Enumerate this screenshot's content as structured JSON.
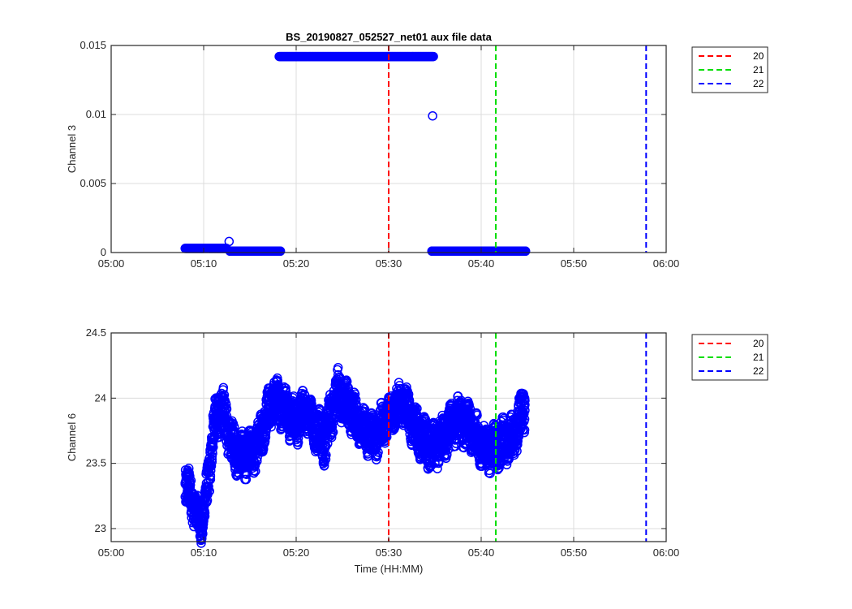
{
  "chart_data": [
    {
      "type": "scatter",
      "title": "BS_20190827_052527_net01 aux file data",
      "xlabel": "",
      "ylabel": "Channel 3",
      "xlim": [
        "05:00",
        "06:00"
      ],
      "ylim": [
        0,
        0.015
      ],
      "xticks": [
        "05:00",
        "05:10",
        "05:20",
        "05:30",
        "05:40",
        "05:50",
        "06:00"
      ],
      "yticks": [
        0,
        0.005,
        0.01,
        0.015
      ],
      "ytick_labels": [
        "0",
        "0.005",
        "0.01",
        "0.015"
      ],
      "grid": true,
      "marker": "circle",
      "marker_color": "#0000ff",
      "segments": [
        {
          "x_start": "05:08:00",
          "x_end": "05:12:30",
          "y": 0.0003
        },
        {
          "x_start": "05:12:50",
          "x_end": "05:18:20",
          "y": 0.0001
        },
        {
          "x_start": "05:18:10",
          "x_end": "05:34:50",
          "y": 0.0142
        },
        {
          "x_start": "05:34:40",
          "x_end": "05:44:50",
          "y": 0.0001
        }
      ],
      "points": [
        {
          "x": "05:12:45",
          "y": 0.0008
        },
        {
          "x": "05:34:45",
          "y": 0.0099
        }
      ],
      "vlines": [
        {
          "name": "20",
          "x": "05:30:00",
          "color": "#ff0000"
        },
        {
          "name": "21",
          "x": "05:41:35",
          "color": "#00dd00"
        },
        {
          "name": "22",
          "x": "05:57:50",
          "color": "#0000ff"
        }
      ],
      "legend_position": "outside-top-right",
      "legend": [
        "20",
        "21",
        "22"
      ]
    },
    {
      "type": "scatter",
      "title": "",
      "xlabel": "Time (HH:MM)",
      "ylabel": "Channel 6",
      "xlim": [
        "05:00",
        "06:00"
      ],
      "ylim": [
        22.9,
        24.5
      ],
      "xticks": [
        "05:00",
        "05:10",
        "05:20",
        "05:30",
        "05:40",
        "05:50",
        "06:00"
      ],
      "yticks": [
        23,
        23.5,
        24,
        24.5
      ],
      "ytick_labels": [
        "23",
        "23.5",
        "24",
        "24.5"
      ],
      "grid": true,
      "marker": "circle",
      "marker_color": "#0000ff",
      "x_range": [
        "05:08:00",
        "05:44:45"
      ],
      "trend": [
        {
          "x": "05:08:00",
          "y_low": 23.2,
          "y_high": 23.5
        },
        {
          "x": "05:09:00",
          "y_low": 23.05,
          "y_high": 23.3
        },
        {
          "x": "05:09:40",
          "y_low": 22.9,
          "y_high": 23.1
        },
        {
          "x": "05:10:30",
          "y_low": 23.2,
          "y_high": 23.5
        },
        {
          "x": "05:11:00",
          "y_low": 23.6,
          "y_high": 23.9
        },
        {
          "x": "05:12:00",
          "y_low": 23.8,
          "y_high": 24.1
        },
        {
          "x": "05:13:00",
          "y_low": 23.5,
          "y_high": 23.8
        },
        {
          "x": "05:14:00",
          "y_low": 23.4,
          "y_high": 23.7
        },
        {
          "x": "05:15:30",
          "y_low": 23.45,
          "y_high": 23.75
        },
        {
          "x": "05:17:30",
          "y_low": 23.85,
          "y_high": 24.15
        },
        {
          "x": "05:19:00",
          "y_low": 23.75,
          "y_high": 24.05
        },
        {
          "x": "05:20:00",
          "y_low": 23.65,
          "y_high": 23.95
        },
        {
          "x": "05:21:00",
          "y_low": 23.8,
          "y_high": 24.05
        },
        {
          "x": "05:22:00",
          "y_low": 23.65,
          "y_high": 23.9
        },
        {
          "x": "05:23:00",
          "y_low": 23.5,
          "y_high": 23.85
        },
        {
          "x": "05:24:30",
          "y_low": 23.9,
          "y_high": 24.2
        },
        {
          "x": "05:26:00",
          "y_low": 23.75,
          "y_high": 24.05
        },
        {
          "x": "05:27:00",
          "y_low": 23.65,
          "y_high": 23.9
        },
        {
          "x": "05:28:30",
          "y_low": 23.55,
          "y_high": 23.85
        },
        {
          "x": "05:30:00",
          "y_low": 23.75,
          "y_high": 24.0
        },
        {
          "x": "05:31:30",
          "y_low": 23.85,
          "y_high": 24.1
        },
        {
          "x": "05:33:00",
          "y_low": 23.6,
          "y_high": 23.9
        },
        {
          "x": "05:34:30",
          "y_low": 23.45,
          "y_high": 23.75
        },
        {
          "x": "05:36:00",
          "y_low": 23.55,
          "y_high": 23.85
        },
        {
          "x": "05:37:30",
          "y_low": 23.7,
          "y_high": 24.0
        },
        {
          "x": "05:39:00",
          "y_low": 23.6,
          "y_high": 23.9
        },
        {
          "x": "05:40:30",
          "y_low": 23.45,
          "y_high": 23.75
        },
        {
          "x": "05:42:00",
          "y_low": 23.5,
          "y_high": 23.8
        },
        {
          "x": "05:43:30",
          "y_low": 23.55,
          "y_high": 23.85
        },
        {
          "x": "05:44:45",
          "y_low": 23.8,
          "y_high": 24.1
        }
      ],
      "vlines": [
        {
          "name": "20",
          "x": "05:30:00",
          "color": "#ff0000"
        },
        {
          "name": "21",
          "x": "05:41:35",
          "color": "#00dd00"
        },
        {
          "name": "22",
          "x": "05:57:50",
          "color": "#0000ff"
        }
      ],
      "legend_position": "outside-top-right",
      "legend": [
        "20",
        "21",
        "22"
      ]
    }
  ]
}
